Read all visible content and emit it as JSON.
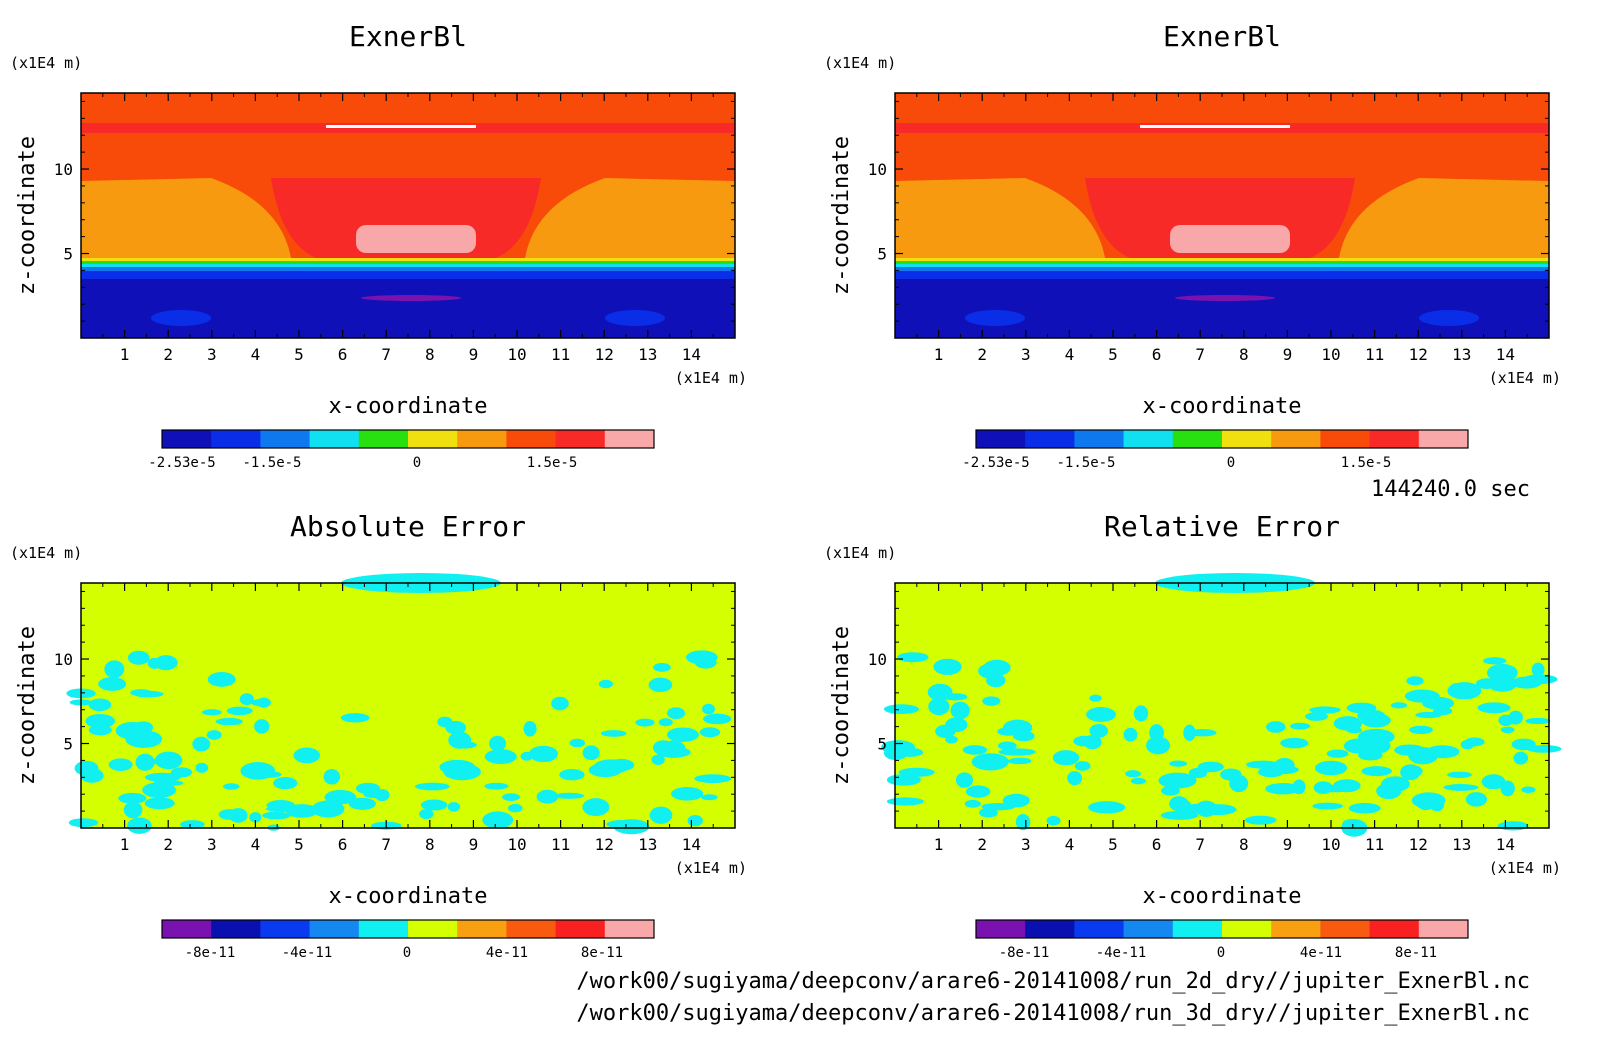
{
  "panels": [
    {
      "title": "ExnerBl",
      "x_label": "x-coordinate",
      "y_label": "z-coordinate",
      "x_unit": "(x1E4 m)",
      "y_unit": "(x1E4 m)",
      "x_ticks": [
        "1",
        "2",
        "3",
        "4",
        "5",
        "6",
        "7",
        "8",
        "9",
        "10",
        "11",
        "12",
        "13",
        "14"
      ],
      "y_ticks": [
        "5",
        "10"
      ],
      "colorbar_labels": [
        "-2.53e-5",
        "-1.5e-5",
        "0",
        "1.5e-5"
      ],
      "colorbar_colors": [
        "#1010b8",
        "#0a2ee8",
        "#0e78ee",
        "#10e0f0",
        "#28e010",
        "#f0e010",
        "#f89a10",
        "#f84a08",
        "#f82a28",
        "#f8a8a8"
      ]
    },
    {
      "title": "ExnerBl",
      "x_label": "x-coordinate",
      "y_label": "z-coordinate",
      "x_unit": "(x1E4 m)",
      "y_unit": "(x1E4 m)",
      "x_ticks": [
        "1",
        "2",
        "3",
        "4",
        "5",
        "6",
        "7",
        "8",
        "9",
        "10",
        "11",
        "12",
        "13",
        "14"
      ],
      "y_ticks": [
        "5",
        "10"
      ],
      "colorbar_labels": [
        "-2.53e-5",
        "-1.5e-5",
        "0",
        "1.5e-5"
      ],
      "colorbar_colors": [
        "#1010b8",
        "#0a2ee8",
        "#0e78ee",
        "#10e0f0",
        "#28e010",
        "#f0e010",
        "#f89a10",
        "#f84a08",
        "#f82a28",
        "#f8a8a8"
      ]
    },
    {
      "title": "Absolute Error",
      "x_label": "x-coordinate",
      "y_label": "z-coordinate",
      "x_unit": "(x1E4 m)",
      "y_unit": "(x1E4 m)",
      "x_ticks": [
        "1",
        "2",
        "3",
        "4",
        "5",
        "6",
        "7",
        "8",
        "9",
        "10",
        "11",
        "12",
        "13",
        "14"
      ],
      "y_ticks": [
        "5",
        "10"
      ],
      "colorbar_labels": [
        "-8e-11",
        "-4e-11",
        "0",
        "4e-11",
        "8e-11"
      ],
      "colorbar_colors": [
        "#7a12b0",
        "#0a10b0",
        "#0a3af0",
        "#1488f0",
        "#10f0f0",
        "#d4ff00",
        "#f8a010",
        "#f85a10",
        "#f82020",
        "#f8a8a8"
      ]
    },
    {
      "title": "Relative Error",
      "x_label": "x-coordinate",
      "y_label": "z-coordinate",
      "x_unit": "(x1E4 m)",
      "y_unit": "(x1E4 m)",
      "x_ticks": [
        "1",
        "2",
        "3",
        "4",
        "5",
        "6",
        "7",
        "8",
        "9",
        "10",
        "11",
        "12",
        "13",
        "14"
      ],
      "y_ticks": [
        "5",
        "10"
      ],
      "colorbar_labels": [
        "-8e-11",
        "-4e-11",
        "0",
        "4e-11",
        "8e-11"
      ],
      "colorbar_colors": [
        "#7a12b0",
        "#0a10b0",
        "#0a3af0",
        "#1488f0",
        "#10f0f0",
        "#d4ff00",
        "#f8a010",
        "#f85a10",
        "#f82020",
        "#f8a8a8"
      ]
    }
  ],
  "time_label": "144240.0 sec",
  "footer": {
    "file1": "/work00/sugiyama/deepconv/arare6-20141008/run_2d_dry//jupiter_ExnerBl.nc",
    "file2": "/work00/sugiyama/deepconv/arare6-20141008/run_3d_dry//jupiter_ExnerBl.nc"
  },
  "chart_data": [
    {
      "type": "heatmap",
      "title": "ExnerBl",
      "xlabel": "x-coordinate",
      "ylabel": "z-coordinate",
      "x_unit": "(x1E4 m)",
      "y_unit": "(x1E4 m)",
      "xlim": [
        0,
        15
      ],
      "ylim": [
        0,
        14.5
      ],
      "x_ticks": [
        1,
        2,
        3,
        4,
        5,
        6,
        7,
        8,
        9,
        10,
        11,
        12,
        13,
        14
      ],
      "y_ticks": [
        5,
        10
      ],
      "colorbar_ticks": [
        "-2.53e-5",
        "-1.5e-5",
        "0",
        "1.5e-5"
      ],
      "grid": false
    },
    {
      "type": "heatmap",
      "title": "ExnerBl",
      "xlabel": "x-coordinate",
      "ylabel": "z-coordinate",
      "x_unit": "(x1E4 m)",
      "y_unit": "(x1E4 m)",
      "xlim": [
        0,
        15
      ],
      "ylim": [
        0,
        14.5
      ],
      "x_ticks": [
        1,
        2,
        3,
        4,
        5,
        6,
        7,
        8,
        9,
        10,
        11,
        12,
        13,
        14
      ],
      "y_ticks": [
        5,
        10
      ],
      "colorbar_ticks": [
        "-2.53e-5",
        "-1.5e-5",
        "0",
        "1.5e-5"
      ],
      "grid": false
    },
    {
      "type": "heatmap",
      "title": "Absolute Error",
      "xlabel": "x-coordinate",
      "ylabel": "z-coordinate",
      "x_unit": "(x1E4 m)",
      "y_unit": "(x1E4 m)",
      "xlim": [
        0,
        15
      ],
      "ylim": [
        0,
        14.5
      ],
      "x_ticks": [
        1,
        2,
        3,
        4,
        5,
        6,
        7,
        8,
        9,
        10,
        11,
        12,
        13,
        14
      ],
      "y_ticks": [
        5,
        10
      ],
      "colorbar_ticks": [
        "-8e-11",
        "-4e-11",
        "0",
        "4e-11",
        "8e-11"
      ],
      "grid": false
    },
    {
      "type": "heatmap",
      "title": "Relative Error",
      "xlabel": "x-coordinate",
      "ylabel": "z-coordinate",
      "x_unit": "(x1E4 m)",
      "y_unit": "(x1E4 m)",
      "xlim": [
        0,
        15
      ],
      "ylim": [
        0,
        14.5
      ],
      "x_ticks": [
        1,
        2,
        3,
        4,
        5,
        6,
        7,
        8,
        9,
        10,
        11,
        12,
        13,
        14
      ],
      "y_ticks": [
        5,
        10
      ],
      "colorbar_ticks": [
        "-8e-11",
        "-4e-11",
        "0",
        "4e-11",
        "8e-11"
      ],
      "grid": false
    }
  ]
}
